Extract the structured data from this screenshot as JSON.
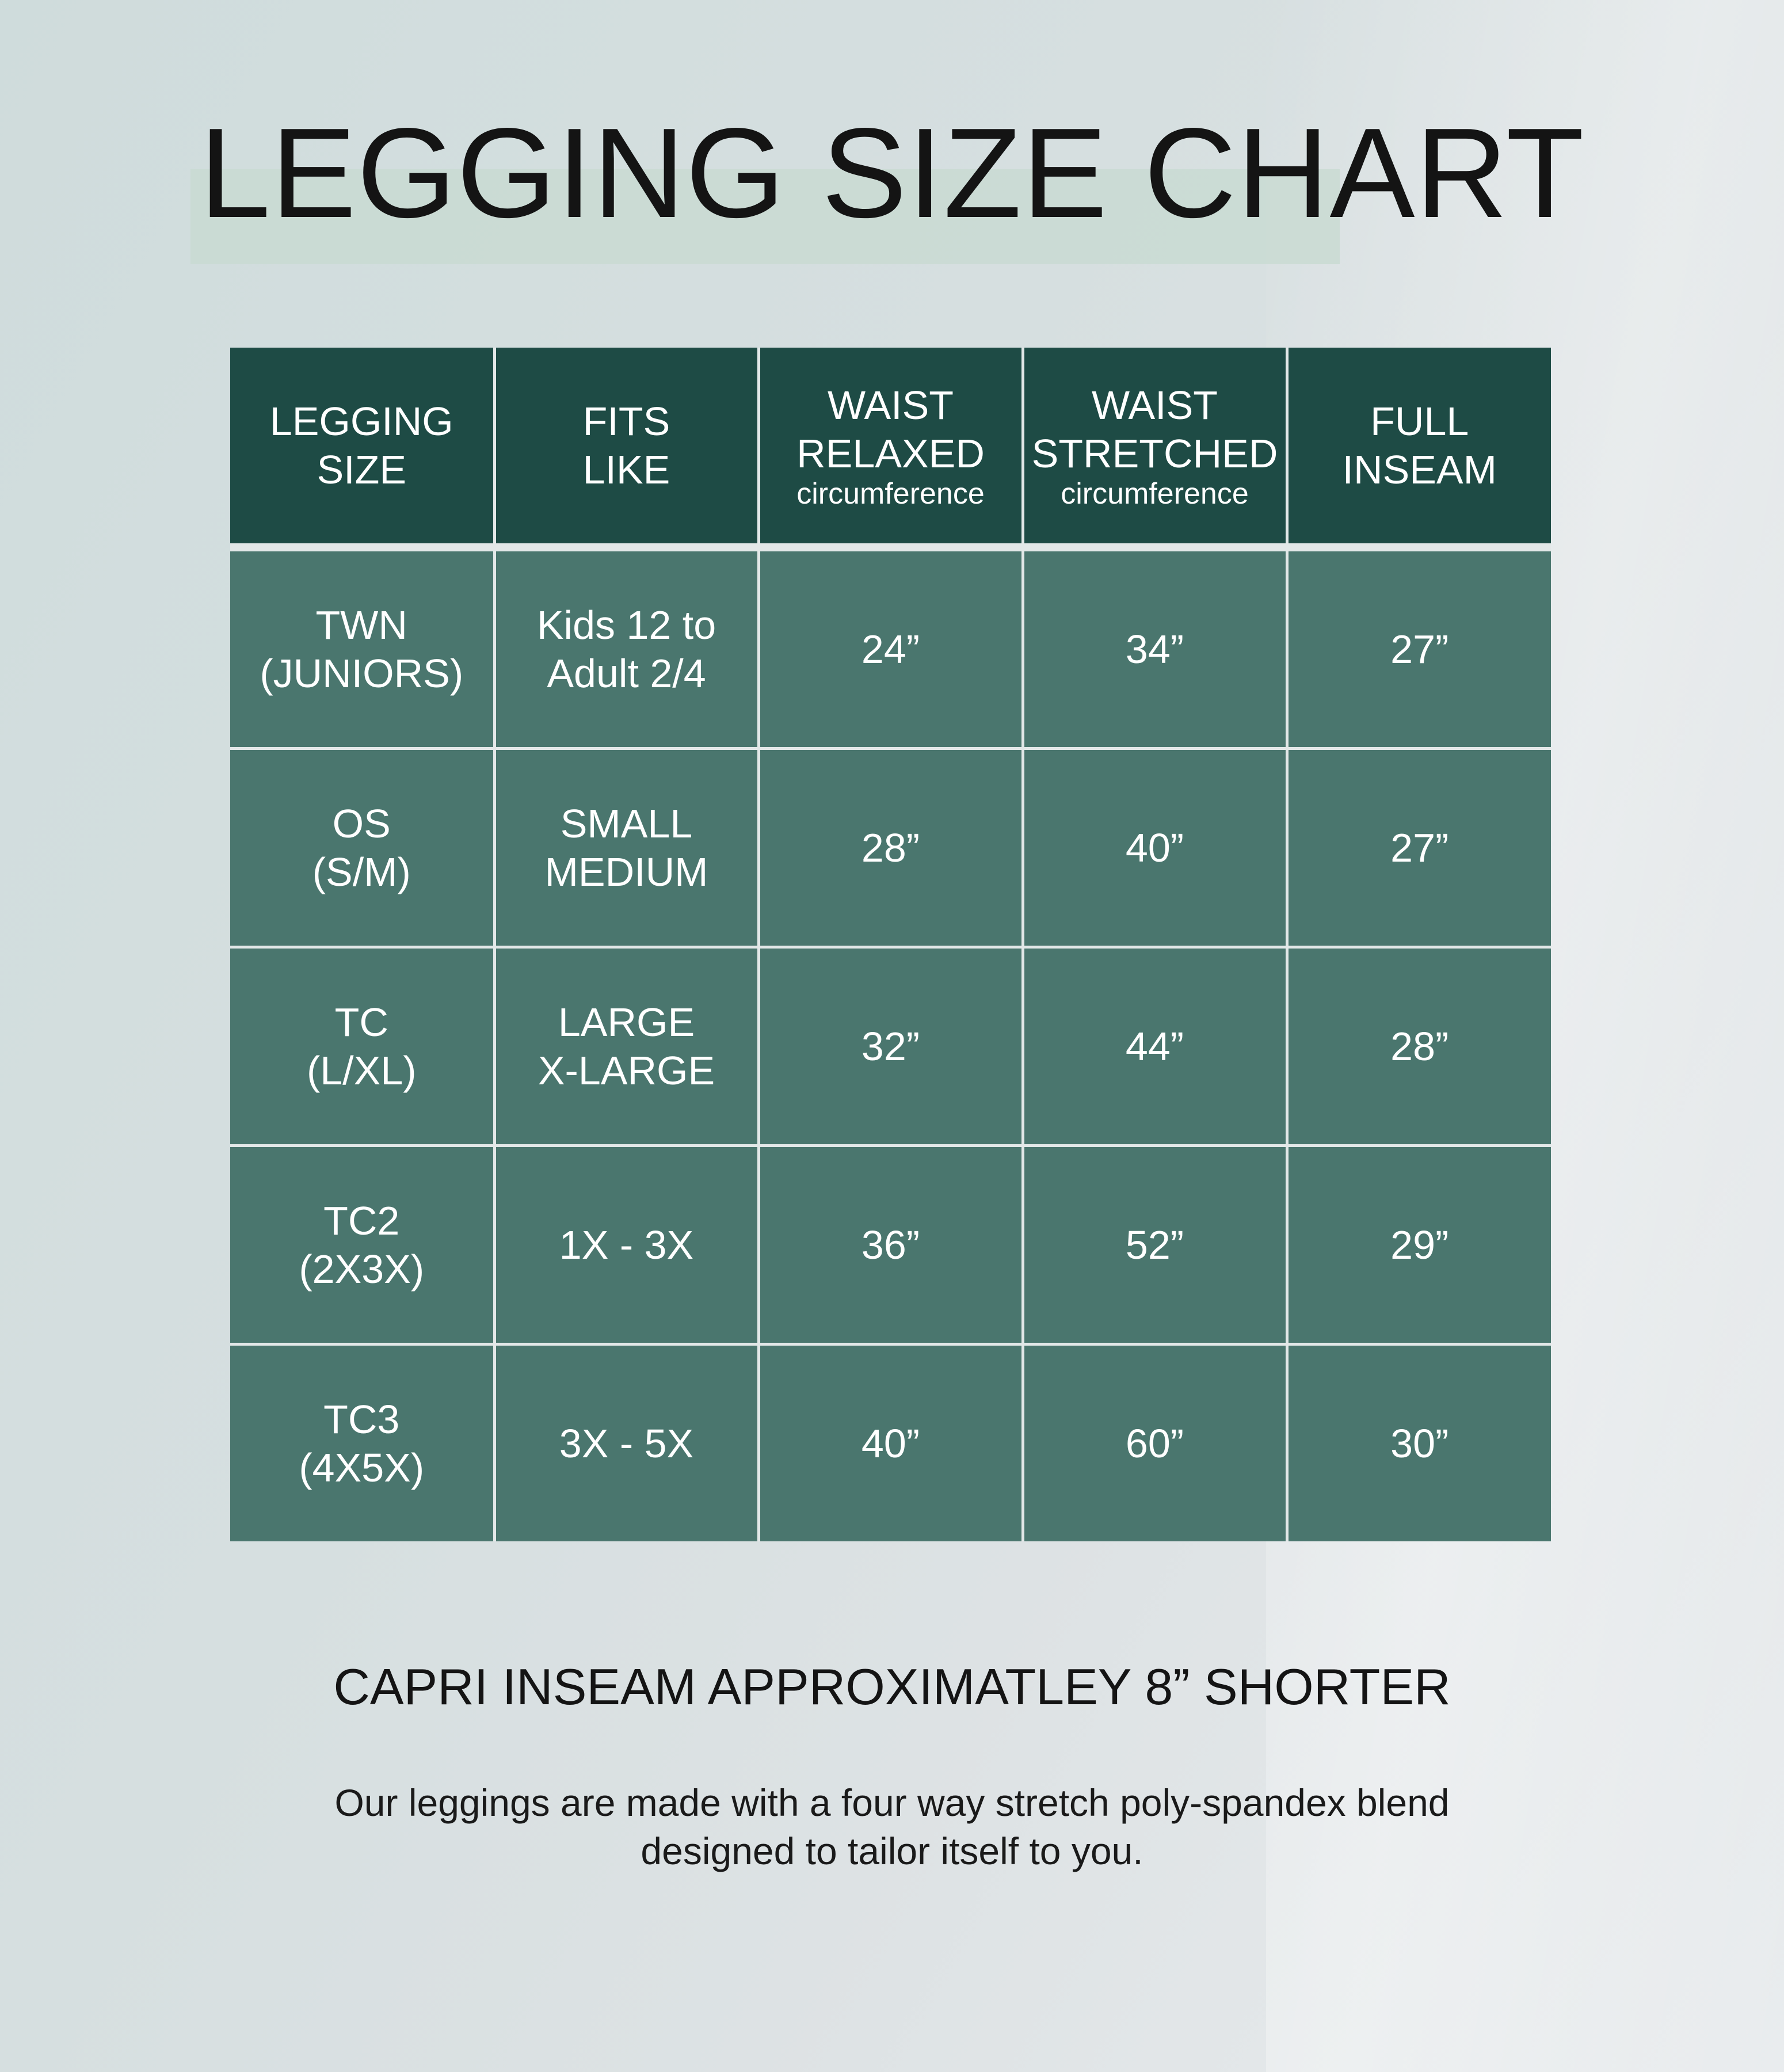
{
  "title": "LEGGING SIZE CHART",
  "colors": {
    "header": "#1e4b45",
    "body": "#4a766e",
    "highlight": "#c9dbd2"
  },
  "table": {
    "headers": [
      {
        "line1": "LEGGING",
        "line2": "SIZE",
        "sub": ""
      },
      {
        "line1": "FITS",
        "line2": "LIKE",
        "sub": ""
      },
      {
        "line1": "WAIST",
        "line2": "RELAXED",
        "sub": "circumference"
      },
      {
        "line1": "WAIST",
        "line2": "STRETCHED",
        "sub": "circumference"
      },
      {
        "line1": "FULL",
        "line2": "INSEAM",
        "sub": ""
      }
    ],
    "rows": [
      {
        "size1": "TWN",
        "size2": "(JUNIORS)",
        "fit1": "Kids 12 to",
        "fit2": "Adult 2/4",
        "relaxed": "24”",
        "stretched": "34”",
        "inseam": "27”"
      },
      {
        "size1": "OS",
        "size2": "(S/M)",
        "fit1": "SMALL",
        "fit2": "MEDIUM",
        "relaxed": "28”",
        "stretched": "40”",
        "inseam": "27”"
      },
      {
        "size1": "TC",
        "size2": "(L/XL)",
        "fit1": "LARGE",
        "fit2": "X-LARGE",
        "relaxed": "32”",
        "stretched": "44”",
        "inseam": "28”"
      },
      {
        "size1": "TC2",
        "size2": "(2X3X)",
        "fit1": "1X - 3X",
        "fit2": "",
        "relaxed": "36”",
        "stretched": "52”",
        "inseam": "29”"
      },
      {
        "size1": "TC3",
        "size2": "(4X5X)",
        "fit1": "3X - 5X",
        "fit2": "",
        "relaxed": "40”",
        "stretched": "60”",
        "inseam": "30”"
      }
    ]
  },
  "capri_note": "CAPRI INSEAM APPROXIMATLEY 8” SHORTER",
  "description_line1": "Our leggings are made with a four way stretch poly-spandex blend",
  "description_line2": "designed to tailor itself to you."
}
